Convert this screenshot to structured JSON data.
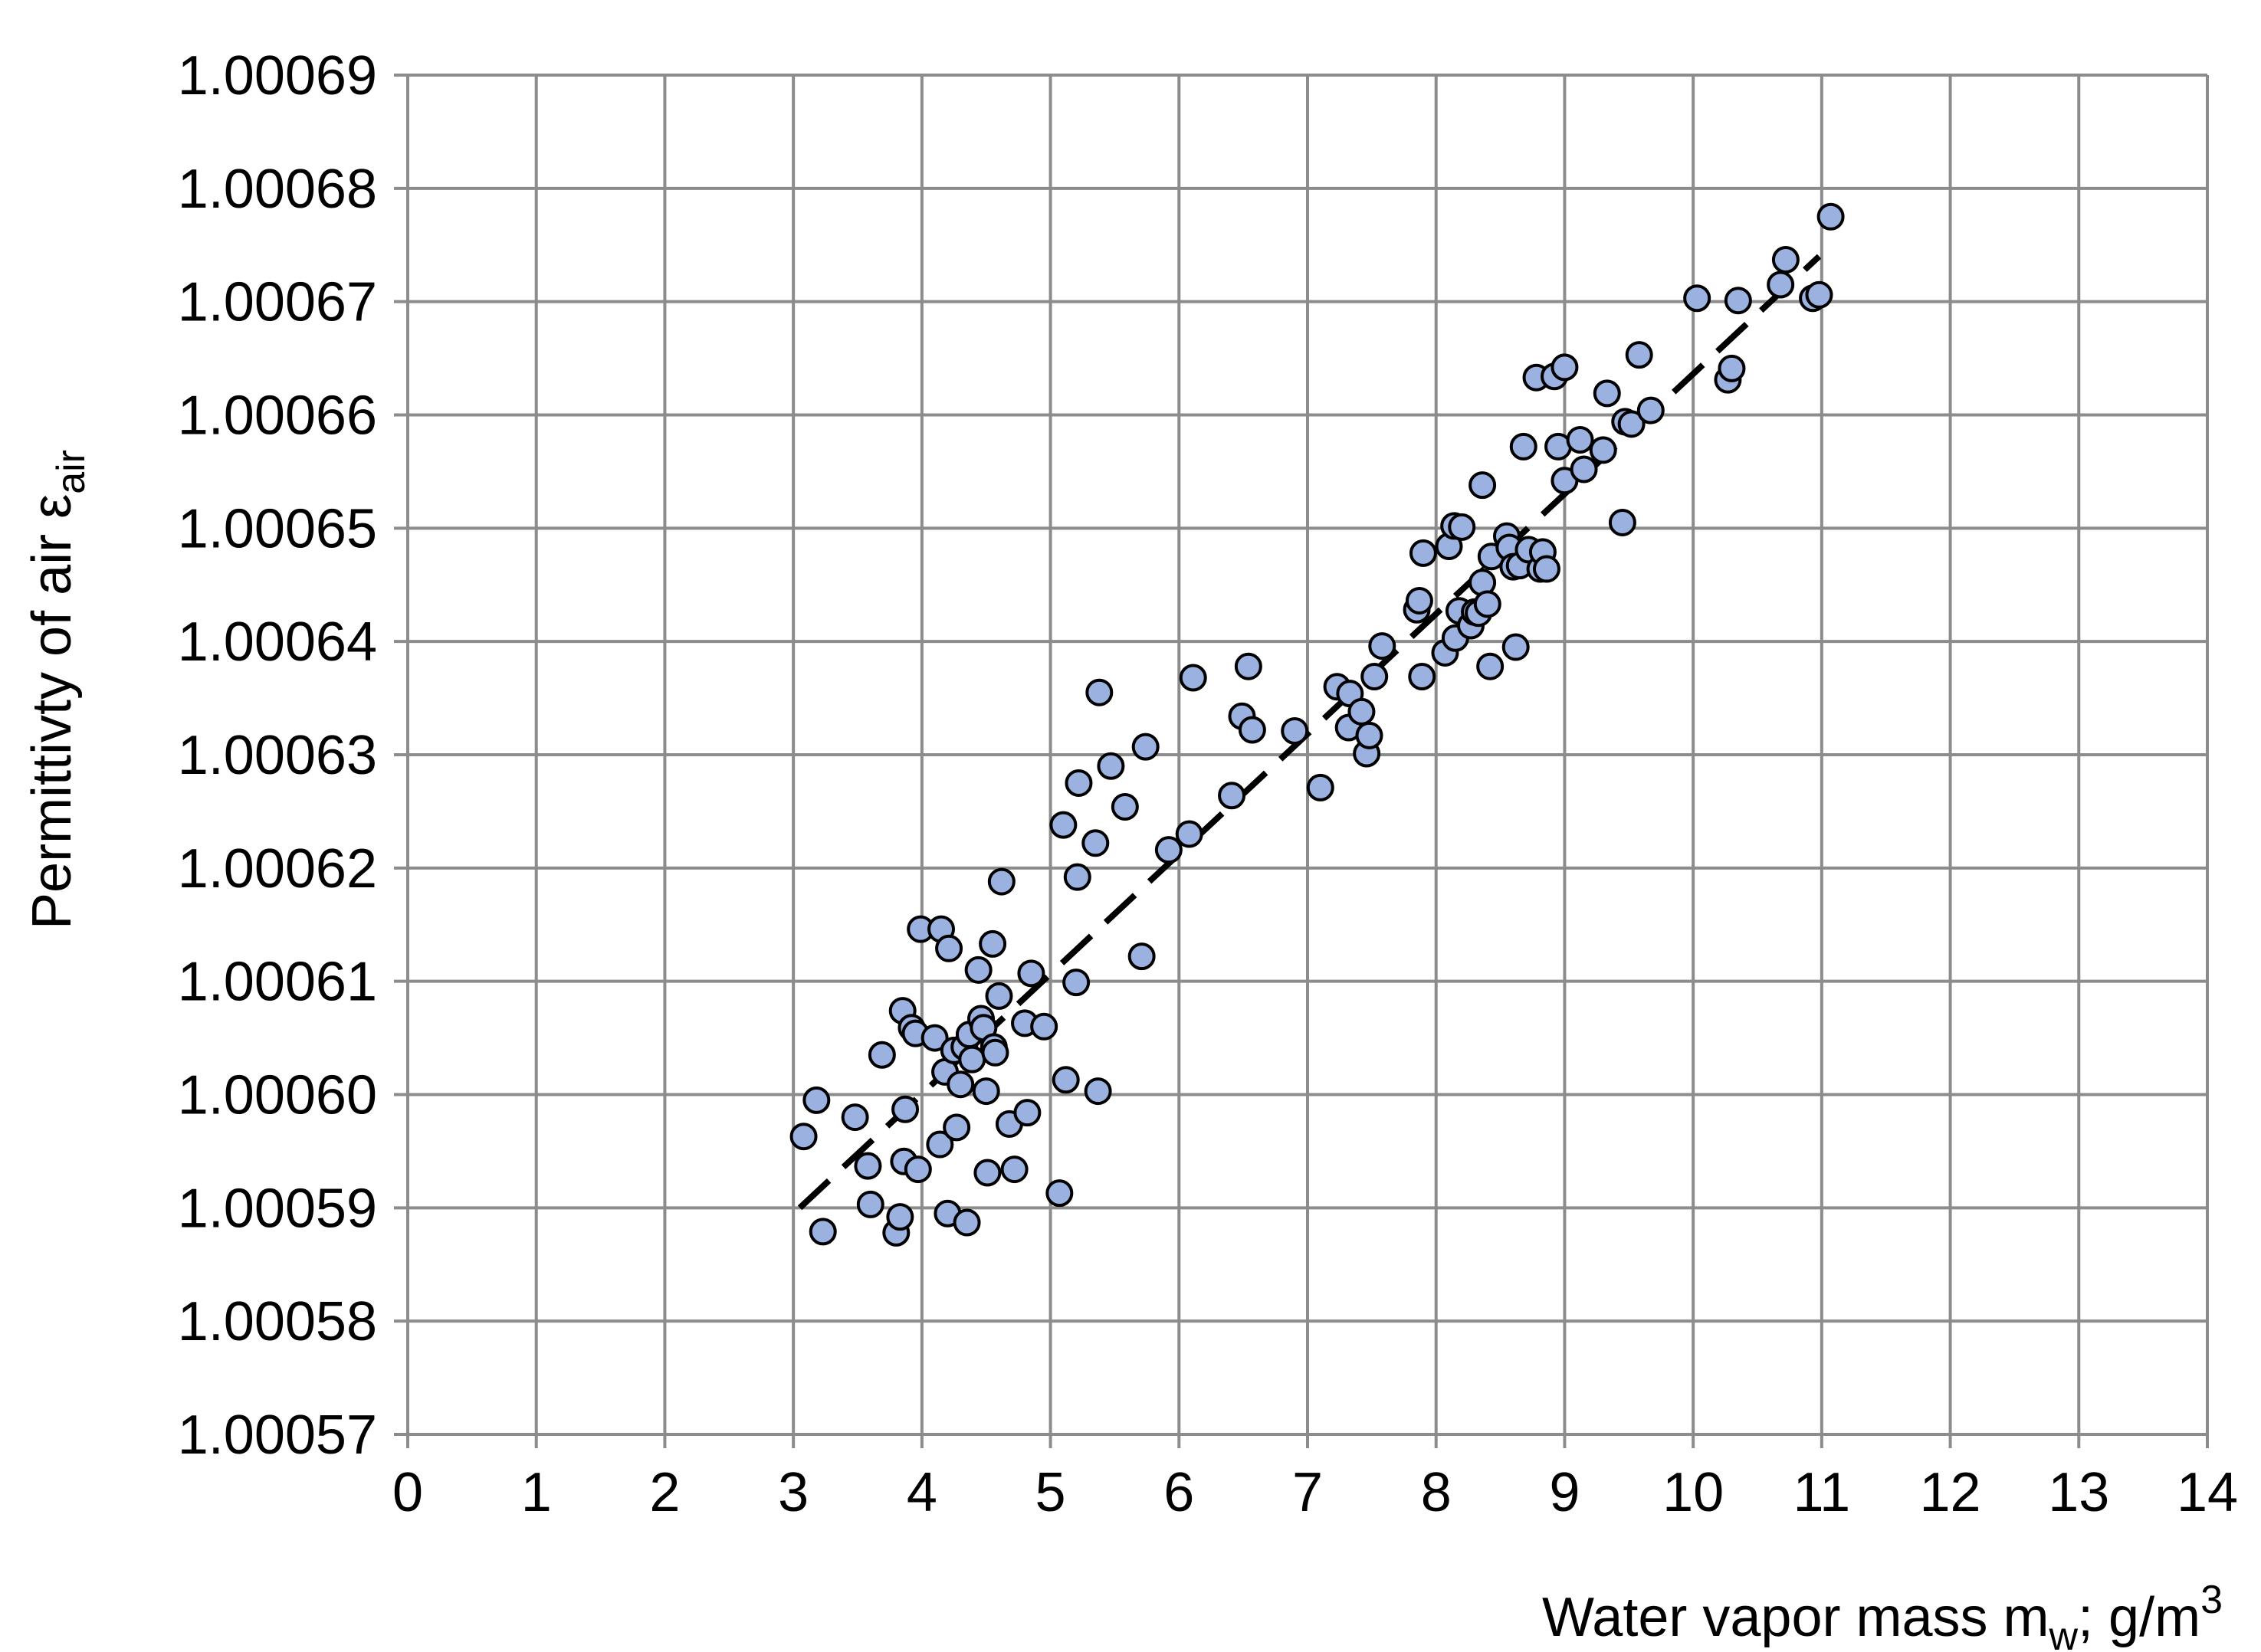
{
  "chart_data": {
    "type": "scatter",
    "xlabel": "Water vapor mass m",
    "xlabel_sub": "w",
    "xlabel_suffix": "; g/m",
    "xlabel_sup": "3",
    "ylabel": "Permittivty of air ε",
    "ylabel_sub": "air",
    "xlim": [
      0,
      14
    ],
    "ylim": [
      1.00057,
      1.00069
    ],
    "x_ticks": [
      "0",
      "1",
      "2",
      "3",
      "4",
      "5",
      "6",
      "7",
      "8",
      "9",
      "10",
      "11",
      "12",
      "13",
      "14"
    ],
    "y_ticks": [
      "1.00057",
      "1.00058",
      "1.00059",
      "1.00060",
      "1.00061",
      "1.00062",
      "1.00063",
      "1.00064",
      "1.00065",
      "1.00066",
      "1.00067",
      "1.00068",
      "1.00069"
    ],
    "grid": true,
    "marker_color": "#9bb1e0",
    "marker_edge_color": "#000000",
    "trendline": {
      "style": "dashed",
      "color": "#000000",
      "start": [
        3.05,
        1.00059
      ],
      "end": [
        10.98,
        1.000674
      ]
    },
    "points": [
      [
        3.08,
        1.0005963
      ],
      [
        3.18,
        1.0005995
      ],
      [
        3.23,
        1.0005879
      ],
      [
        3.48,
        1.000598
      ],
      [
        3.58,
        1.0005937
      ],
      [
        3.6,
        1.0005903
      ],
      [
        3.69,
        1.0006035
      ],
      [
        3.8,
        1.0005878
      ],
      [
        3.83,
        1.0005892
      ],
      [
        3.85,
        1.0006074
      ],
      [
        3.86,
        1.0005941
      ],
      [
        3.87,
        1.0005987
      ],
      [
        3.92,
        1.0006059
      ],
      [
        3.95,
        1.0006054
      ],
      [
        3.97,
        1.0005934
      ],
      [
        3.99,
        1.0006146
      ],
      [
        4.1,
        1.000605
      ],
      [
        4.14,
        1.0005956
      ],
      [
        4.15,
        1.0006146
      ],
      [
        4.18,
        1.000602
      ],
      [
        4.2,
        1.0005895
      ],
      [
        4.21,
        1.0006129
      ],
      [
        4.25,
        1.0006039
      ],
      [
        4.27,
        1.0005971
      ],
      [
        4.3,
        1.0006009
      ],
      [
        4.33,
        1.0006042
      ],
      [
        4.35,
        1.0005887
      ],
      [
        4.37,
        1.0006053
      ],
      [
        4.39,
        1.0006031
      ],
      [
        4.44,
        1.000611
      ],
      [
        4.46,
        1.0006067
      ],
      [
        4.48,
        1.0006059
      ],
      [
        4.5,
        1.0006003
      ],
      [
        4.51,
        1.0005931
      ],
      [
        4.55,
        1.0006133
      ],
      [
        4.56,
        1.0006042
      ],
      [
        4.57,
        1.0006037
      ],
      [
        4.6,
        1.0006087
      ],
      [
        4.62,
        1.0006188
      ],
      [
        4.68,
        1.0005974
      ],
      [
        4.72,
        1.0005934
      ],
      [
        4.8,
        1.0006063
      ],
      [
        4.82,
        1.0005984
      ],
      [
        4.85,
        1.0006107
      ],
      [
        4.95,
        1.000606
      ],
      [
        5.07,
        1.0005913
      ],
      [
        5.1,
        1.0006238
      ],
      [
        5.12,
        1.0006013
      ],
      [
        5.2,
        1.0006099
      ],
      [
        5.21,
        1.0006192
      ],
      [
        5.22,
        1.0006275
      ],
      [
        5.35,
        1.0006222
      ],
      [
        5.37,
        1.0006003
      ],
      [
        5.38,
        1.0006355
      ],
      [
        5.47,
        1.000629
      ],
      [
        5.58,
        1.0006254
      ],
      [
        5.71,
        1.0006122
      ],
      [
        5.74,
        1.0006307
      ],
      [
        5.92,
        1.0006216
      ],
      [
        6.08,
        1.000623
      ],
      [
        6.11,
        1.0006368
      ],
      [
        6.41,
        1.0006264
      ],
      [
        6.49,
        1.0006334
      ],
      [
        6.54,
        1.0006378
      ],
      [
        6.57,
        1.0006322
      ],
      [
        6.9,
        1.0006321
      ],
      [
        7.1,
        1.0006271
      ],
      [
        7.23,
        1.000636
      ],
      [
        7.32,
        1.0006324
      ],
      [
        7.33,
        1.0006354
      ],
      [
        7.42,
        1.0006338
      ],
      [
        7.46,
        1.0006301
      ],
      [
        7.48,
        1.0006317
      ],
      [
        7.52,
        1.0006369
      ],
      [
        7.58,
        1.0006396
      ],
      [
        7.85,
        1.0006428
      ],
      [
        7.87,
        1.0006436
      ],
      [
        7.89,
        1.0006369
      ],
      [
        7.9,
        1.0006478
      ],
      [
        8.07,
        1.000639
      ],
      [
        8.1,
        1.0006484
      ],
      [
        8.14,
        1.0006502
      ],
      [
        8.15,
        1.0006403
      ],
      [
        8.18,
        1.0006427
      ],
      [
        8.2,
        1.0006501
      ],
      [
        8.27,
        1.0006414
      ],
      [
        8.3,
        1.0006426
      ],
      [
        8.33,
        1.0006425
      ],
      [
        8.36,
        1.0006538
      ],
      [
        8.36,
        1.0006452
      ],
      [
        8.4,
        1.0006433
      ],
      [
        8.42,
        1.0006378
      ],
      [
        8.43,
        1.0006475
      ],
      [
        8.55,
        1.0006493
      ],
      [
        8.57,
        1.0006483
      ],
      [
        8.6,
        1.0006466
      ],
      [
        8.62,
        1.0006395
      ],
      [
        8.65,
        1.0006467
      ],
      [
        8.68,
        1.0006572
      ],
      [
        8.72,
        1.0006481
      ],
      [
        8.78,
        1.0006633
      ],
      [
        8.81,
        1.0006464
      ],
      [
        8.83,
        1.0006479
      ],
      [
        8.86,
        1.0006464
      ],
      [
        8.92,
        1.0006634
      ],
      [
        8.95,
        1.0006572
      ],
      [
        9.0,
        1.0006642
      ],
      [
        9.0,
        1.0006542
      ],
      [
        9.12,
        1.0006578
      ],
      [
        9.15,
        1.0006552
      ],
      [
        9.3,
        1.0006569
      ],
      [
        9.33,
        1.0006619
      ],
      [
        9.45,
        1.0006505
      ],
      [
        9.47,
        1.0006594
      ],
      [
        9.52,
        1.0006592
      ],
      [
        9.58,
        1.0006653
      ],
      [
        9.67,
        1.0006604
      ],
      [
        10.03,
        1.0006703
      ],
      [
        10.27,
        1.0006631
      ],
      [
        10.3,
        1.0006641
      ],
      [
        10.35,
        1.0006701
      ],
      [
        10.68,
        1.0006715
      ],
      [
        10.72,
        1.0006737
      ],
      [
        10.93,
        1.0006703
      ],
      [
        10.98,
        1.0006706
      ],
      [
        11.07,
        1.0006775
      ]
    ]
  }
}
